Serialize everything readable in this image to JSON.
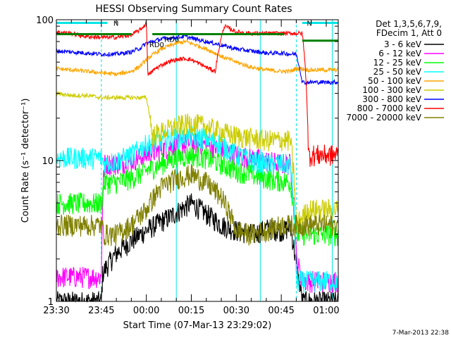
{
  "chart_data": {
    "type": "line",
    "title": "HESSI Observing Summary Count Rates",
    "xlabel": "Start Time (07-Mar-13 23:29:02)",
    "ylabel": "Count Rate (s⁻¹ detector⁻¹)",
    "ylim": [
      1,
      100
    ],
    "yscale": "log",
    "ytick_labels": [
      "1",
      "10",
      "100"
    ],
    "xlim_minutes": [
      0,
      94
    ],
    "xtick_labels": [
      "23:30",
      "23:45",
      "00:00",
      "00:15",
      "00:30",
      "00:45",
      "01:00"
    ],
    "xtick_minutes": [
      0,
      15,
      30,
      45,
      60,
      75,
      90
    ],
    "legend_header": [
      "Det 1,3,5,6,7,9,",
      "FDecim 1, Att 0"
    ],
    "legend_position": "right",
    "footer_date": "7-Mar-2013 22:38",
    "annotations": [
      {
        "text": "N",
        "x": 19,
        "y": 95
      },
      {
        "text": "RD0",
        "x": 36,
        "y": 73
      },
      {
        "text": "RD0",
        "x": 31,
        "y": 67
      },
      {
        "text": "N",
        "x": 83.5,
        "y": 95
      }
    ],
    "markers": {
      "night_lines_solid": [
        0,
        40,
        68,
        92
      ],
      "night_lines_dashed": [
        15,
        80
      ],
      "daylight_segments": [
        {
          "x0": 0,
          "x1": 17,
          "y": 95
        },
        {
          "x0": 82,
          "x1": 94,
          "y": 95
        }
      ],
      "attenuator_segments": [
        {
          "x0": 0,
          "x1": 25,
          "y": 79
        },
        {
          "x0": 32,
          "x1": 76,
          "y": 79
        },
        {
          "x0": 82,
          "x1": 94,
          "y": 71
        }
      ]
    },
    "series": [
      {
        "name": "3 - 6 keV",
        "color": "#000000",
        "x": [
          0,
          15,
          15.5,
          20,
          30,
          38,
          45,
          50,
          55,
          60,
          66,
          70,
          76,
          78,
          80,
          82,
          84,
          88,
          92,
          94
        ],
        "y": [
          1,
          1,
          1.6,
          2.2,
          3.2,
          4,
          5,
          4.2,
          3.5,
          3.2,
          3.0,
          3.3,
          3.2,
          3.4,
          1.8,
          1,
          1,
          1,
          1,
          1
        ]
      },
      {
        "name": "6 - 12 keV",
        "color": "#ff00ff",
        "x": [
          0,
          15,
          16,
          20,
          25,
          30,
          35,
          40,
          45,
          50,
          55,
          60,
          65,
          70,
          75,
          78,
          80,
          82,
          84,
          88,
          92,
          94
        ],
        "y": [
          1.5,
          1.5,
          9.5,
          9.5,
          10,
          11,
          12,
          13,
          13.5,
          13,
          12,
          11,
          10.5,
          10,
          9.5,
          9.5,
          2,
          1.4,
          1.4,
          1.4,
          1.4,
          1.4
        ]
      },
      {
        "name": "12 - 25 keV",
        "color": "#00ff00",
        "x": [
          0,
          15,
          16,
          20,
          25,
          30,
          35,
          40,
          45,
          50,
          55,
          60,
          65,
          70,
          75,
          78,
          80,
          84,
          88,
          92,
          94
        ],
        "y": [
          5,
          5,
          7,
          7,
          7.5,
          8.5,
          9.5,
          10.5,
          11,
          10.5,
          9.5,
          8.5,
          8,
          7.5,
          7.2,
          7,
          3,
          3,
          3,
          3,
          3
        ]
      },
      {
        "name": "25 - 50 keV",
        "color": "#00ffff",
        "x": [
          0,
          15,
          16,
          20,
          25,
          30,
          35,
          40,
          45,
          50,
          55,
          60,
          65,
          70,
          75,
          78,
          80,
          84,
          88,
          92,
          94
        ],
        "y": [
          10.5,
          10.5,
          9.5,
          10,
          11,
          13,
          14,
          14.5,
          15,
          14.5,
          13,
          11,
          10,
          9.5,
          9.5,
          9.5,
          1.4,
          1.4,
          1.4,
          1.4,
          1.4
        ]
      },
      {
        "name": "50 - 100 keV",
        "color": "#ffa500",
        "x": [
          0,
          5,
          10,
          15,
          20,
          25,
          28,
          30,
          35,
          40,
          43,
          45,
          50,
          55,
          60,
          65,
          70,
          75,
          78,
          80,
          82,
          84,
          88,
          92,
          94
        ],
        "y": [
          45,
          44,
          43,
          42,
          41,
          43,
          47,
          52,
          62,
          68,
          70,
          68,
          62,
          55,
          50,
          46,
          44,
          43,
          43,
          45,
          45,
          44,
          44,
          44,
          44
        ]
      },
      {
        "name": "100 - 300 keV",
        "color": "#cccc00",
        "x": [
          0,
          5,
          10,
          15,
          20,
          25,
          28,
          30,
          32,
          35,
          40,
          45,
          50,
          55,
          60,
          65,
          70,
          75,
          78,
          80,
          84,
          88,
          92,
          94
        ],
        "y": [
          30,
          29,
          29,
          28,
          28,
          28,
          28,
          28,
          15,
          16,
          17.5,
          18.5,
          17.5,
          16,
          15,
          14.5,
          14,
          14,
          14,
          3.5,
          4.5,
          4.5,
          4.5,
          4.5
        ]
      },
      {
        "name": "300 - 800 keV",
        "color": "#0000ff",
        "x": [
          0,
          5,
          10,
          15,
          20,
          25,
          28,
          30,
          35,
          40,
          43,
          45,
          50,
          55,
          60,
          65,
          70,
          75,
          78,
          80,
          82,
          84,
          88,
          92,
          94
        ],
        "y": [
          60,
          59,
          58,
          57,
          57,
          59,
          63,
          68,
          73,
          75,
          76,
          74,
          70,
          66,
          62,
          60,
          58,
          58,
          57,
          57,
          36,
          36,
          36,
          36,
          36
        ]
      },
      {
        "name": "800 - 7000 keV",
        "color": "#ff0000",
        "x": [
          0,
          5,
          10,
          15,
          20,
          25,
          28,
          30,
          30.5,
          33,
          37,
          40,
          43,
          45,
          50,
          53,
          56,
          60,
          65,
          70,
          75,
          78,
          80,
          82,
          84,
          88,
          92,
          94
        ],
        "y": [
          82,
          80,
          76,
          75,
          75,
          78,
          85,
          94,
          40,
          45,
          50,
          52,
          53,
          52,
          46,
          43,
          90,
          82,
          80,
          80,
          80,
          80,
          80,
          80,
          11,
          11,
          11,
          11
        ]
      },
      {
        "name": "7000 - 20000 keV",
        "color": "#808000",
        "x": [
          0,
          15,
          16,
          20,
          25,
          30,
          35,
          40,
          45,
          50,
          55,
          60,
          65,
          70,
          75,
          78,
          80,
          84,
          88,
          92,
          94
        ],
        "y": [
          3.5,
          3.5,
          3,
          3,
          3.5,
          4.5,
          6.5,
          7.5,
          8,
          7,
          5.5,
          3.2,
          3,
          3.2,
          3.5,
          3.5,
          3.5,
          3.5,
          3.5,
          3.5,
          3.5
        ]
      }
    ]
  }
}
